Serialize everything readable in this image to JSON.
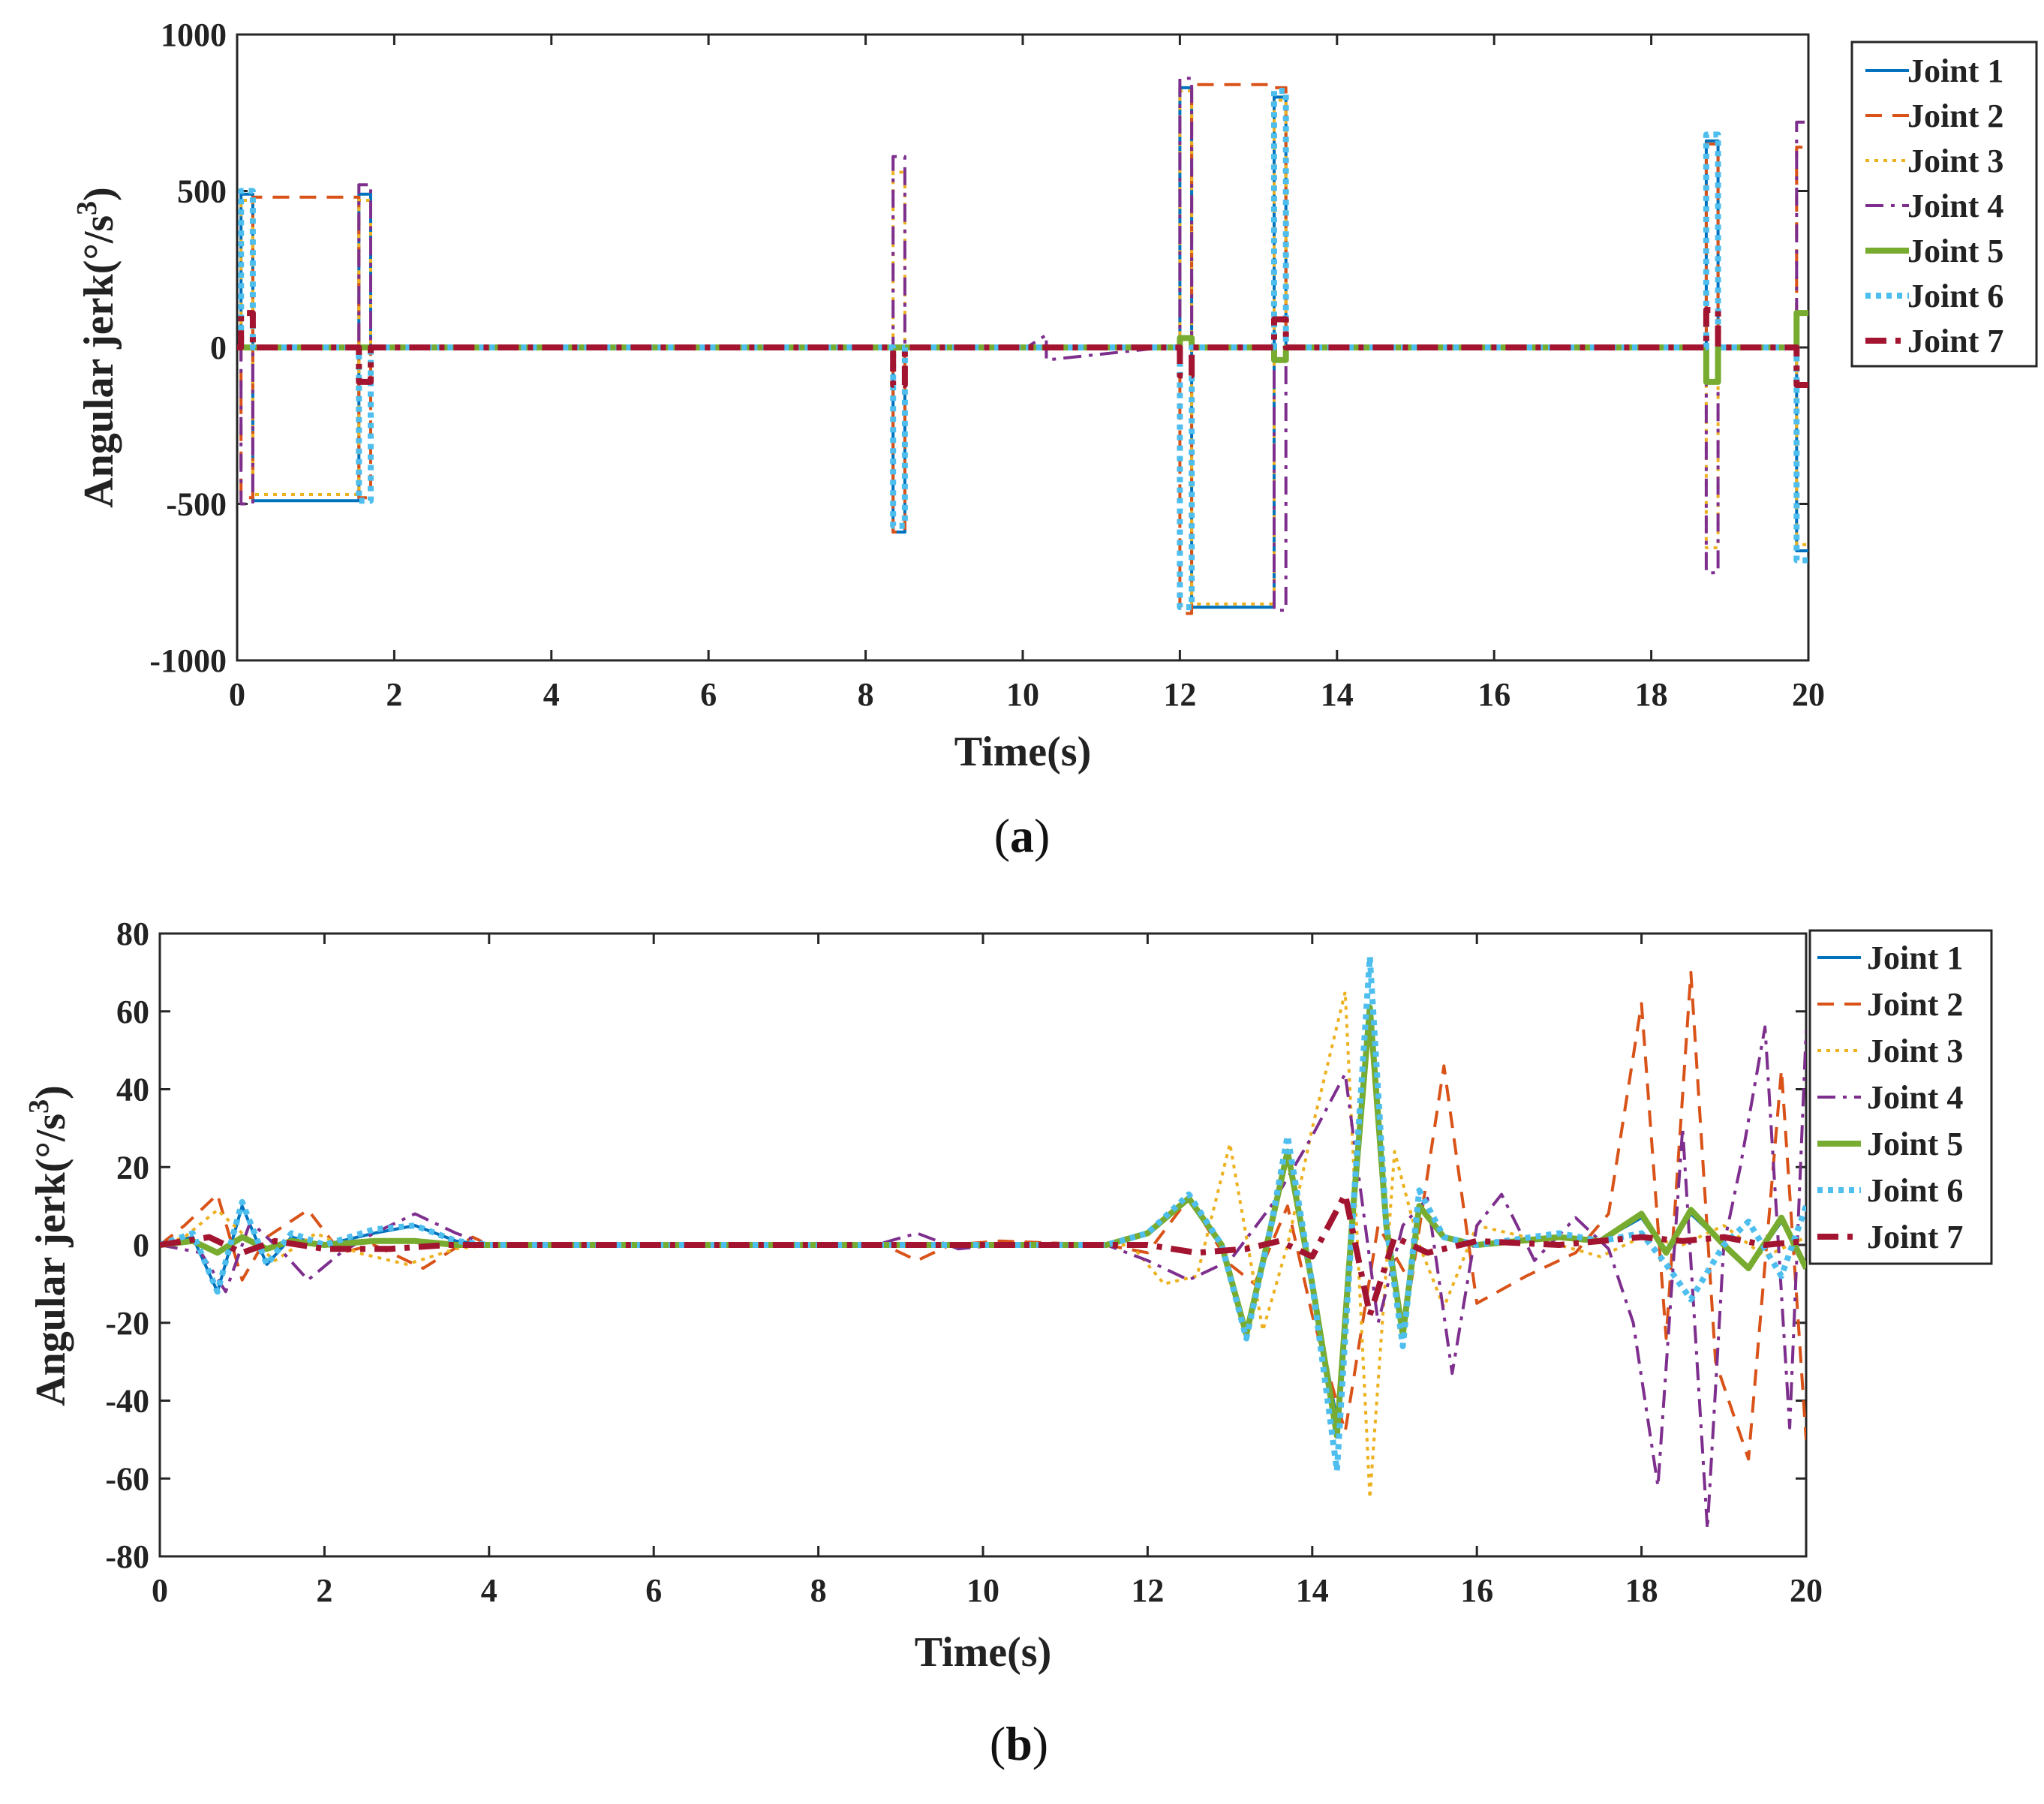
{
  "colors": {
    "joint1": "#0072BD",
    "joint2": "#D95319",
    "joint3": "#EDB120",
    "joint4": "#7E2F8E",
    "joint5": "#77AC30",
    "joint6": "#4DBEEE",
    "joint7": "#A2142F"
  },
  "chart_data": [
    {
      "type": "line",
      "caption_letter": "a",
      "xlabel": "Time(s)",
      "ylabel": "Angular jerk(°/s",
      "ylabel_sup": "3",
      "ylabel_close": ")",
      "xlim": [
        0,
        20
      ],
      "ylim": [
        -1000,
        1000
      ],
      "xticks": [
        0,
        2,
        4,
        6,
        8,
        10,
        12,
        14,
        16,
        18,
        20
      ],
      "yticks": [
        -1000,
        -500,
        0,
        500,
        1000
      ],
      "legend_position": "outside-right-top",
      "series": [
        {
          "name": "Joint 1",
          "key": "joint1",
          "x": [
            0,
            0.05,
            0.05,
            0.2,
            0.2,
            1.55,
            1.55,
            1.7,
            1.7,
            8.35,
            8.35,
            8.5,
            8.5,
            12.0,
            12.0,
            12.15,
            12.15,
            13.2,
            13.2,
            13.35,
            13.35,
            18.7,
            18.7,
            18.85,
            18.85,
            19.85,
            19.85,
            20
          ],
          "y": [
            0,
            0,
            490,
            490,
            -490,
            -490,
            490,
            490,
            0,
            0,
            -590,
            -590,
            0,
            0,
            830,
            830,
            -830,
            -830,
            800,
            800,
            0,
            0,
            660,
            660,
            0,
            0,
            -650,
            -650
          ]
        },
        {
          "name": "Joint 2",
          "key": "joint2",
          "x": [
            0,
            0.05,
            0.05,
            0.2,
            0.2,
            1.55,
            1.55,
            1.7,
            1.7,
            8.35,
            8.35,
            8.5,
            8.5,
            12.0,
            12.0,
            12.15,
            12.15,
            13.2,
            13.2,
            13.35,
            13.35,
            18.7,
            18.7,
            18.85,
            18.85,
            19.85,
            19.85,
            20
          ],
          "y": [
            0,
            0,
            -480,
            -480,
            480,
            480,
            -480,
            -480,
            0,
            0,
            -590,
            -590,
            0,
            0,
            -850,
            -850,
            840,
            840,
            830,
            830,
            0,
            0,
            650,
            650,
            0,
            0,
            640,
            640
          ]
        },
        {
          "name": "Joint 3",
          "key": "joint3",
          "x": [
            0,
            0.05,
            0.05,
            0.2,
            0.2,
            1.55,
            1.55,
            1.7,
            1.7,
            8.35,
            8.35,
            8.5,
            8.5,
            12.0,
            12.0,
            12.15,
            12.15,
            13.2,
            13.2,
            13.35,
            13.35,
            18.7,
            18.7,
            18.85,
            18.85,
            19.85,
            19.85,
            20
          ],
          "y": [
            0,
            0,
            470,
            470,
            -470,
            -470,
            470,
            470,
            0,
            0,
            560,
            560,
            0,
            0,
            820,
            820,
            -820,
            -820,
            790,
            790,
            0,
            0,
            -640,
            -640,
            0,
            0,
            -630,
            -630
          ]
        },
        {
          "name": "Joint 4",
          "key": "joint4",
          "x": [
            0,
            0.05,
            0.05,
            0.2,
            0.2,
            1.55,
            1.55,
            1.7,
            1.7,
            8.35,
            8.35,
            8.5,
            8.5,
            10.05,
            10.3,
            10.3,
            11.8,
            12.0,
            12.0,
            12.15,
            12.15,
            13.2,
            13.2,
            13.35,
            13.35,
            18.7,
            18.7,
            18.85,
            18.85,
            19.85,
            19.85,
            20
          ],
          "y": [
            0,
            0,
            -500,
            -500,
            0,
            0,
            520,
            520,
            0,
            0,
            610,
            610,
            0,
            0,
            40,
            -40,
            0,
            0,
            860,
            860,
            0,
            0,
            -840,
            -840,
            0,
            0,
            -720,
            -720,
            0,
            0,
            720,
            720
          ]
        },
        {
          "name": "Joint 5",
          "key": "joint5",
          "x": [
            0,
            12.0,
            12.0,
            12.15,
            12.15,
            13.2,
            13.2,
            13.35,
            13.35,
            18.7,
            18.7,
            18.85,
            18.85,
            19.85,
            19.85,
            20
          ],
          "y": [
            0,
            0,
            30,
            30,
            0,
            0,
            -40,
            -40,
            0,
            0,
            -110,
            -110,
            0,
            0,
            110,
            110
          ]
        },
        {
          "name": "Joint 6",
          "key": "joint6",
          "x": [
            0,
            0.05,
            0.05,
            0.2,
            0.2,
            1.55,
            1.55,
            1.7,
            1.7,
            8.35,
            8.35,
            8.5,
            8.5,
            12.0,
            12.0,
            12.15,
            12.15,
            13.2,
            13.2,
            13.35,
            13.35,
            18.7,
            18.7,
            18.85,
            18.85,
            19.85,
            19.85,
            20
          ],
          "y": [
            0,
            0,
            500,
            500,
            0,
            0,
            -490,
            -490,
            0,
            0,
            -570,
            -570,
            0,
            0,
            -830,
            -830,
            0,
            0,
            820,
            820,
            0,
            0,
            680,
            680,
            0,
            0,
            -680,
            -680
          ]
        },
        {
          "name": "Joint 7",
          "key": "joint7",
          "x": [
            0,
            0.05,
            0.05,
            0.2,
            0.2,
            1.55,
            1.55,
            1.7,
            1.7,
            8.35,
            8.35,
            8.5,
            8.5,
            12.0,
            12.0,
            12.15,
            12.15,
            13.2,
            13.2,
            13.35,
            13.35,
            18.7,
            18.7,
            18.85,
            18.85,
            19.85,
            19.85,
            20
          ],
          "y": [
            0,
            0,
            110,
            110,
            0,
            0,
            -110,
            -110,
            0,
            0,
            -120,
            -120,
            0,
            0,
            -90,
            -90,
            0,
            0,
            90,
            90,
            0,
            0,
            120,
            120,
            0,
            0,
            -120,
            -120
          ]
        }
      ]
    },
    {
      "type": "line",
      "caption_letter": "b",
      "xlabel": "Time(s)",
      "ylabel": "Angular jerk(°/s",
      "ylabel_sup": "3",
      "ylabel_close": ")",
      "xlim": [
        0,
        20
      ],
      "ylim": [
        -80,
        80
      ],
      "xticks": [
        0,
        2,
        4,
        6,
        8,
        10,
        12,
        14,
        16,
        18,
        20
      ],
      "yticks": [
        -80,
        -60,
        -40,
        -20,
        0,
        20,
        40,
        60,
        80
      ],
      "legend_position": "outside-right-top",
      "series": [
        {
          "name": "Joint 1",
          "key": "joint1",
          "x": [
            0,
            0.4,
            0.7,
            1.0,
            1.3,
            1.6,
            2.0,
            2.6,
            3.1,
            3.6,
            4.0,
            11.5,
            12.0,
            12.5,
            12.9,
            13.2,
            13.5,
            13.7,
            14.0,
            14.3,
            14.5,
            14.7,
            14.9,
            15.1,
            15.3,
            15.6,
            16.0,
            17.0,
            17.5,
            18.0,
            18.3,
            18.6,
            19.0,
            19.3,
            19.7,
            20.0
          ],
          "y": [
            0,
            2,
            -12,
            10,
            -5,
            2,
            0,
            3,
            5,
            1,
            0,
            0,
            3,
            12,
            0,
            -23,
            5,
            24,
            -10,
            -45,
            10,
            58,
            5,
            -23,
            10,
            2,
            0,
            2,
            1,
            7,
            -2,
            8,
            0,
            -6,
            6,
            -5
          ]
        },
        {
          "name": "Joint 2",
          "key": "joint2",
          "x": [
            0,
            0.3,
            0.7,
            1.0,
            1.3,
            1.8,
            2.2,
            2.6,
            3.2,
            3.8,
            4.0,
            8.8,
            9.2,
            9.6,
            10.2,
            11.5,
            12.0,
            12.5,
            13.0,
            13.3,
            13.7,
            14.0,
            14.4,
            14.8,
            15.2,
            15.6,
            16.0,
            16.6,
            17.2,
            17.6,
            18.0,
            18.3,
            18.6,
            18.9,
            19.3,
            19.7,
            20.0
          ],
          "y": [
            0,
            5,
            13,
            -9,
            2,
            9,
            -2,
            0,
            -6,
            2,
            0,
            0,
            -4,
            0,
            1,
            0,
            -2,
            12,
            -5,
            -10,
            10,
            -18,
            -48,
            5,
            -10,
            46,
            -15,
            -8,
            -2,
            8,
            62,
            -24,
            70,
            -30,
            -55,
            45,
            -50
          ]
        },
        {
          "name": "Joint 3",
          "key": "joint3",
          "x": [
            0,
            0.3,
            0.7,
            1.0,
            1.4,
            1.9,
            2.4,
            3.0,
            3.6,
            4.0,
            11.8,
            12.2,
            12.6,
            13.0,
            13.4,
            13.7,
            14.0,
            14.4,
            14.7,
            15.0,
            15.3,
            15.6,
            16.0,
            17.0,
            17.5,
            18.0,
            18.5,
            19.0,
            19.5,
            20.0
          ],
          "y": [
            0,
            2,
            9,
            3,
            -4,
            3,
            -2,
            -5,
            -1,
            0,
            0,
            -10,
            -8,
            26,
            -22,
            0,
            30,
            65,
            -65,
            24,
            0,
            -16,
            5,
            0,
            -3,
            2,
            0,
            5,
            -3,
            2
          ]
        },
        {
          "name": "Joint 4",
          "key": "joint4",
          "x": [
            0,
            0.5,
            0.8,
            1.1,
            1.5,
            1.8,
            2.2,
            2.6,
            3.1,
            3.6,
            4.0,
            8.7,
            9.2,
            9.7,
            10.2,
            11.5,
            12.0,
            12.5,
            13.0,
            13.5,
            14.0,
            14.4,
            14.8,
            15.1,
            15.4,
            15.7,
            16.0,
            16.3,
            16.7,
            17.2,
            17.6,
            17.9,
            18.2,
            18.5,
            18.8,
            19.0,
            19.2,
            19.5,
            19.8,
            20.0
          ],
          "y": [
            0,
            -2,
            -12,
            6,
            -2,
            -9,
            -2,
            3,
            8,
            3,
            0,
            0,
            3,
            -1,
            0,
            0,
            -4,
            -9,
            -4,
            10,
            28,
            44,
            -20,
            5,
            12,
            -33,
            5,
            13,
            -4,
            7,
            -1,
            -20,
            -62,
            30,
            -73,
            0,
            20,
            56,
            -47,
            55
          ]
        },
        {
          "name": "Joint 5",
          "key": "joint5",
          "x": [
            0,
            0.4,
            0.7,
            1.0,
            1.3,
            1.6,
            2.0,
            2.6,
            3.1,
            3.6,
            4.0,
            11.5,
            12.0,
            12.5,
            12.9,
            13.2,
            13.5,
            13.7,
            14.0,
            14.3,
            14.5,
            14.7,
            14.9,
            15.1,
            15.3,
            15.6,
            16.0,
            17.0,
            17.5,
            18.0,
            18.3,
            18.6,
            19.0,
            19.3,
            19.7,
            20.0
          ],
          "y": [
            0,
            1,
            -2,
            2,
            -1,
            1,
            0,
            1,
            1,
            0,
            0,
            0,
            3,
            12,
            0,
            -23,
            5,
            24,
            -10,
            -49,
            10,
            61,
            5,
            -23,
            10,
            2,
            0,
            2,
            1,
            8,
            -2,
            9,
            0,
            -6,
            7,
            -6
          ]
        },
        {
          "name": "Joint 6",
          "key": "joint6",
          "x": [
            0,
            0.4,
            0.7,
            1.0,
            1.3,
            1.6,
            2.0,
            2.6,
            3.1,
            3.6,
            4.0,
            11.5,
            12.0,
            12.5,
            12.9,
            13.2,
            13.5,
            13.7,
            14.0,
            14.3,
            14.5,
            14.7,
            14.9,
            15.1,
            15.3,
            15.6,
            16.0,
            17.0,
            17.5,
            18.0,
            18.3,
            18.6,
            19.0,
            19.3,
            19.7,
            20.0
          ],
          "y": [
            0,
            3,
            -12,
            11,
            -5,
            3,
            0,
            4,
            5,
            1,
            0,
            0,
            3,
            13,
            0,
            -24,
            5,
            28,
            -10,
            -58,
            10,
            74,
            5,
            -26,
            14,
            2,
            0,
            3,
            1,
            3,
            -5,
            -14,
            0,
            6,
            -8,
            10
          ]
        },
        {
          "name": "Joint 7",
          "key": "joint7",
          "x": [
            0,
            0.6,
            1.0,
            1.4,
            2.0,
            2.8,
            3.5,
            4.0,
            12.0,
            12.6,
            13.2,
            13.6,
            14.0,
            14.4,
            14.7,
            15.0,
            15.4,
            16.0,
            17.0,
            18.0,
            18.5,
            19.0,
            19.5,
            20.0
          ],
          "y": [
            0,
            2,
            -2,
            1,
            -1,
            -1,
            0,
            0,
            0,
            -2,
            -1,
            1,
            -3,
            13,
            -18,
            2,
            -2,
            1,
            0,
            2,
            1,
            2,
            0,
            1
          ]
        }
      ]
    }
  ]
}
